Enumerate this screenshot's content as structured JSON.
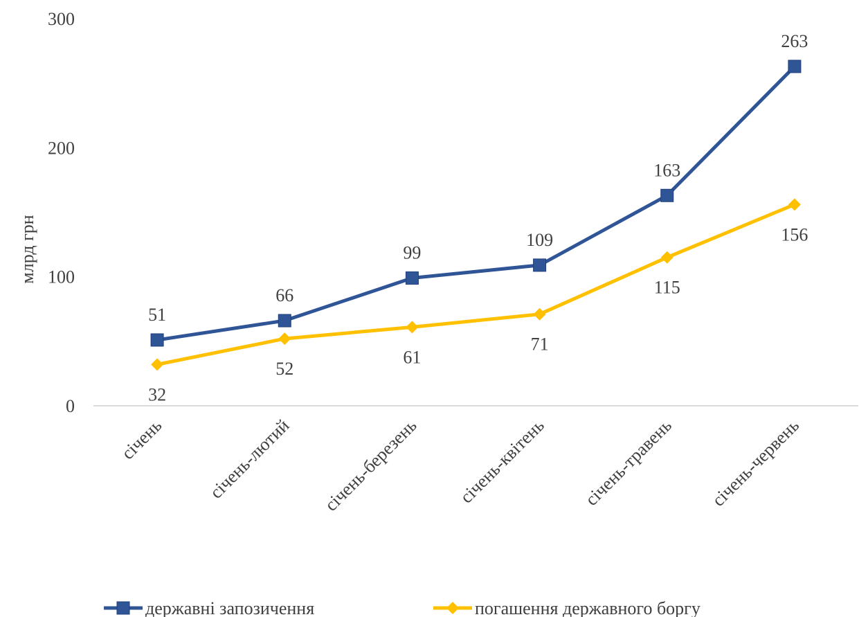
{
  "chart_data": {
    "type": "line",
    "y_label": "млрд грн",
    "categories": [
      "січень",
      "січень-лютий",
      "січень-березень",
      "січень-квітень",
      "січень-травень",
      "січень-червень"
    ],
    "series": [
      {
        "name": "державні запозичення",
        "color": "#2f5597",
        "marker": "square",
        "values": [
          51,
          66,
          99,
          109,
          163,
          263
        ]
      },
      {
        "name": "погашення державного боргу",
        "color": "#ffc000",
        "marker": "diamond",
        "values": [
          32,
          52,
          61,
          71,
          115,
          156
        ]
      }
    ],
    "ylim": [
      0,
      300
    ],
    "yticks": [
      0,
      100,
      200,
      300
    ],
    "grid": false,
    "legend": "bottom"
  }
}
